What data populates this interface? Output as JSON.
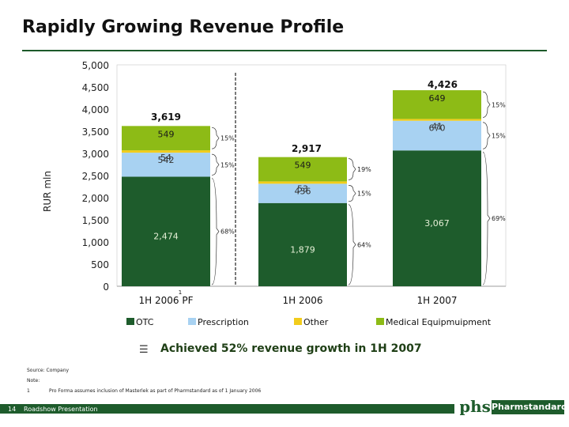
{
  "page": {
    "title": "Rapidly Growing Revenue Profile",
    "headline_bullet": "☰",
    "headline": "Achieved 52% revenue growth in 1H 2007",
    "source": "Source: Company",
    "note_label": "Note:",
    "note_number": "1",
    "note_text": "Pro Forma assumes inclusion of Masterlek as part of Pharmstandard as of 1 January 2006",
    "page_number": "14",
    "footer_text": "Roadshow Presentation",
    "logo_text": "Pharmstandard",
    "logo_mark": "phs",
    "colors": {
      "otc": "#1e5c2c",
      "prescription": "#a8d2f2",
      "other": "#f2cc1c",
      "medical": "#8dbb16",
      "brand": "#1e5c2c"
    }
  },
  "chart_data": {
    "type": "bar",
    "stacked": true,
    "ylabel": "RUR mln",
    "ylim": [
      0,
      5000
    ],
    "yticks": [
      "0",
      "500",
      "1,000",
      "1,500",
      "2,000",
      "2,500",
      "3,000",
      "3,500",
      "4,000",
      "4,500",
      "5,000"
    ],
    "categories": [
      "1H 2006 PF",
      "1H 2006",
      "1H 2007"
    ],
    "category_footnote": "1",
    "totals": [
      "3,619",
      "2,917",
      "4,426"
    ],
    "series": [
      {
        "name": "OTC",
        "values": [
          2474,
          1879,
          3067
        ],
        "labels": [
          "2,474",
          "1,879",
          "3,067"
        ],
        "shares": [
          "68%",
          "64%",
          "69%"
        ]
      },
      {
        "name": "Prescription",
        "values": [
          542,
          436,
          670
        ],
        "labels": [
          "542",
          "436",
          "670"
        ],
        "shares": [
          "15%",
          "15%",
          "15%"
        ]
      },
      {
        "name": "Other",
        "values": [
          54,
          53,
          41
        ],
        "labels": [
          "54",
          "53",
          "41"
        ],
        "shares": [
          "",
          "",
          ""
        ]
      },
      {
        "name": "Medical Equipmuipment",
        "values": [
          549,
          549,
          649
        ],
        "labels": [
          "549",
          "549",
          "649"
        ],
        "shares": [
          "15%",
          "19%",
          "15%"
        ]
      }
    ]
  }
}
